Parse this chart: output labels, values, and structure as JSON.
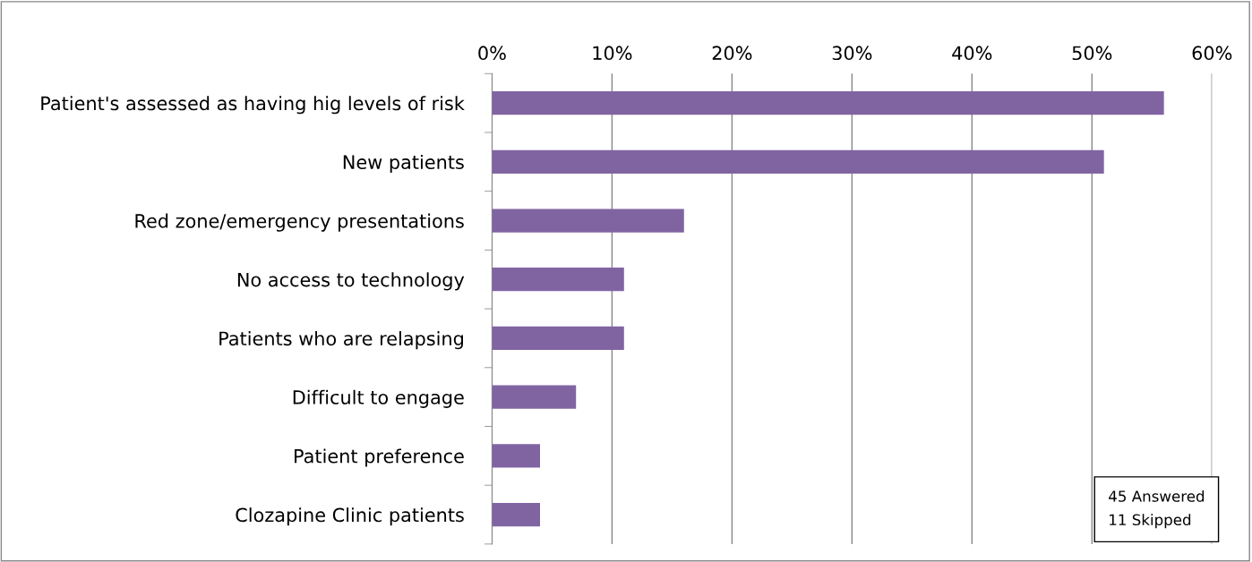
{
  "chart_data": {
    "type": "bar",
    "orientation": "horizontal",
    "categories": [
      "Patient's assessed as having hig levels of risk",
      "New patients",
      "Red zone/emergency presentations",
      "No access to technology",
      "Patients who are relapsing",
      "Difficult to engage",
      "Patient preference",
      "Clozapine Clinic patients"
    ],
    "values": [
      56,
      51,
      16,
      11,
      11,
      7,
      4,
      4
    ],
    "color": "#8064a2",
    "xlim": [
      0,
      60
    ],
    "xticks": [
      {
        "value": 0,
        "label": "0%"
      },
      {
        "value": 10,
        "label": "10%"
      },
      {
        "value": 20,
        "label": "20%"
      },
      {
        "value": 30,
        "label": "30%"
      },
      {
        "value": 40,
        "label": "40%"
      },
      {
        "value": 50,
        "label": "50%"
      },
      {
        "value": 60,
        "label": "60%"
      }
    ],
    "grid": "x",
    "annotations": [
      "45 Answered",
      "11 Skipped"
    ]
  }
}
